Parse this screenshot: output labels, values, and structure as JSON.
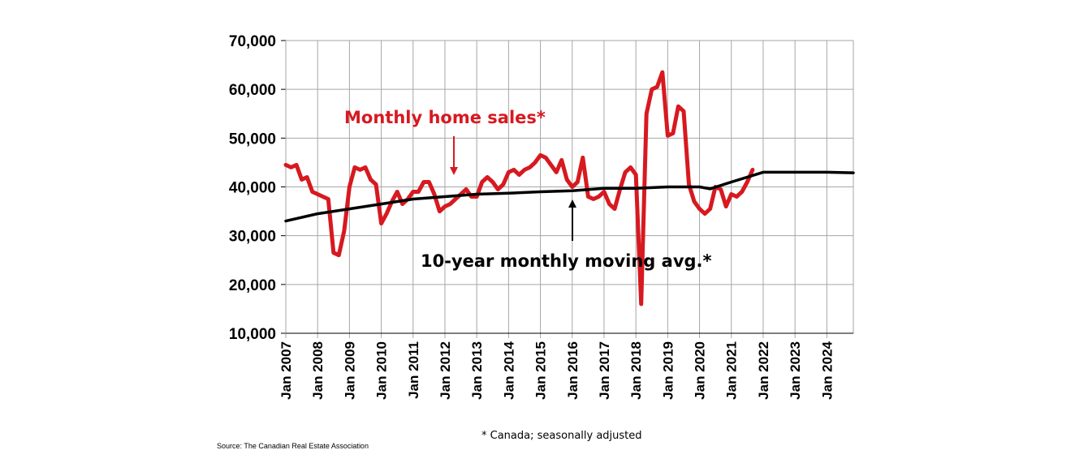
{
  "colors": {
    "sales": "#d71920",
    "average": "#000000",
    "grid": "#a6a6a6"
  },
  "footnote": "* Canada; seasonally adjusted",
  "source": "Source: The Canadian Real Estate Association",
  "chart_data": {
    "type": "line",
    "title": "",
    "xlabel": "",
    "ylabel": "",
    "ylim": [
      10000,
      70000
    ],
    "yticks": [
      10000,
      20000,
      30000,
      40000,
      50000,
      60000,
      70000
    ],
    "ytick_labels": [
      "10,000",
      "20,000",
      "30,000",
      "40,000",
      "50,000",
      "60,000",
      "70,000"
    ],
    "xlim": [
      "2007-01",
      "2024-11"
    ],
    "xtick_labels": [
      "Jan 2007",
      "Jan 2008",
      "Jan 2009",
      "Jan 2010",
      "Jan 2011",
      "Jan 2012",
      "Jan 2013",
      "Jan 2014",
      "Jan 2015",
      "Jan 2016",
      "Jan 2017",
      "Jan 2018",
      "Jan 2019",
      "Jan 2020",
      "Jan 2021",
      "Jan 2022",
      "Jan 2023",
      "Jan 2024"
    ],
    "grid": true,
    "annotations": [
      {
        "text": "Monthly home sales*",
        "series": "sales",
        "arrow": "down",
        "at": "2012-04"
      },
      {
        "text": "10-year monthly moving avg.*",
        "series": "average",
        "arrow": "up",
        "at": "2016-01"
      }
    ],
    "series": [
      {
        "key": "sales",
        "points": [
          [
            "2007-01",
            44500
          ],
          [
            "2007-03",
            44000
          ],
          [
            "2007-05",
            44500
          ],
          [
            "2007-07",
            41500
          ],
          [
            "2007-09",
            42000
          ],
          [
            "2007-11",
            39000
          ],
          [
            "2008-01",
            38500
          ],
          [
            "2008-03",
            38000
          ],
          [
            "2008-05",
            37500
          ],
          [
            "2008-07",
            26500
          ],
          [
            "2008-09",
            26000
          ],
          [
            "2008-11",
            31000
          ],
          [
            "2009-01",
            40000
          ],
          [
            "2009-03",
            44000
          ],
          [
            "2009-05",
            43500
          ],
          [
            "2009-07",
            44000
          ],
          [
            "2009-09",
            41500
          ],
          [
            "2009-11",
            40500
          ],
          [
            "2010-01",
            32500
          ],
          [
            "2010-03",
            34500
          ],
          [
            "2010-05",
            37000
          ],
          [
            "2010-07",
            39000
          ],
          [
            "2010-09",
            36500
          ],
          [
            "2010-11",
            37500
          ],
          [
            "2011-01",
            39000
          ],
          [
            "2011-03",
            39000
          ],
          [
            "2011-05",
            41000
          ],
          [
            "2011-07",
            41000
          ],
          [
            "2011-09",
            38500
          ],
          [
            "2011-11",
            35000
          ],
          [
            "2012-01",
            36000
          ],
          [
            "2012-03",
            36500
          ],
          [
            "2012-05",
            37500
          ],
          [
            "2012-07",
            38500
          ],
          [
            "2012-09",
            39500
          ],
          [
            "2012-11",
            38000
          ],
          [
            "2013-01",
            38000
          ],
          [
            "2013-03",
            41000
          ],
          [
            "2013-05",
            42000
          ],
          [
            "2013-07",
            41000
          ],
          [
            "2013-09",
            39500
          ],
          [
            "2013-11",
            40500
          ],
          [
            "2014-01",
            43000
          ],
          [
            "2014-03",
            43500
          ],
          [
            "2014-05",
            42500
          ],
          [
            "2014-07",
            43500
          ],
          [
            "2014-09",
            44000
          ],
          [
            "2014-11",
            45000
          ],
          [
            "2015-01",
            46500
          ],
          [
            "2015-03",
            46000
          ],
          [
            "2015-05",
            44500
          ],
          [
            "2015-07",
            43000
          ],
          [
            "2015-09",
            45500
          ],
          [
            "2015-11",
            41500
          ],
          [
            "2016-01",
            40000
          ],
          [
            "2016-03",
            41000
          ],
          [
            "2016-05",
            46000
          ],
          [
            "2016-07",
            38000
          ],
          [
            "2016-09",
            37500
          ],
          [
            "2016-11",
            38000
          ],
          [
            "2017-01",
            39000
          ],
          [
            "2017-03",
            36500
          ],
          [
            "2017-05",
            35500
          ],
          [
            "2017-07",
            39500
          ],
          [
            "2017-09",
            43000
          ],
          [
            "2017-11",
            44000
          ],
          [
            "2018-01",
            42500
          ],
          [
            "2018-03",
            16000
          ],
          [
            "2018-05",
            55000
          ],
          [
            "2018-07",
            60000
          ],
          [
            "2018-09",
            60500
          ],
          [
            "2018-11",
            63500
          ],
          [
            "2019-01",
            50500
          ],
          [
            "2019-03",
            51000
          ],
          [
            "2019-05",
            56500
          ],
          [
            "2019-07",
            55500
          ],
          [
            "2019-09",
            40500
          ],
          [
            "2019-11",
            37000
          ],
          [
            "2020-01",
            35500
          ],
          [
            "2020-03",
            34500
          ],
          [
            "2020-05",
            35500
          ],
          [
            "2020-07",
            40000
          ],
          [
            "2020-09",
            39500
          ],
          [
            "2020-11",
            36000
          ],
          [
            "2021-01",
            38500
          ],
          [
            "2021-03",
            38000
          ],
          [
            "2021-05",
            39000
          ],
          [
            "2021-07",
            41000
          ],
          [
            "2021-09",
            43500
          ]
        ]
      },
      {
        "key": "average",
        "points": [
          [
            "2007-01",
            33000
          ],
          [
            "2008-01",
            34500
          ],
          [
            "2009-01",
            35500
          ],
          [
            "2010-01",
            36500
          ],
          [
            "2011-01",
            37500
          ],
          [
            "2012-01",
            38000
          ],
          [
            "2013-01",
            38500
          ],
          [
            "2014-01",
            38700
          ],
          [
            "2015-01",
            39000
          ],
          [
            "2016-01",
            39200
          ],
          [
            "2017-01",
            39700
          ],
          [
            "2018-01",
            39700
          ],
          [
            "2019-01",
            40000
          ],
          [
            "2020-01",
            40000
          ],
          [
            "2020-05",
            39600
          ],
          [
            "2021-01",
            41000
          ],
          [
            "2022-01",
            43000
          ],
          [
            "2023-01",
            43000
          ],
          [
            "2024-01",
            43000
          ],
          [
            "2024-11",
            42900
          ]
        ]
      }
    ]
  }
}
